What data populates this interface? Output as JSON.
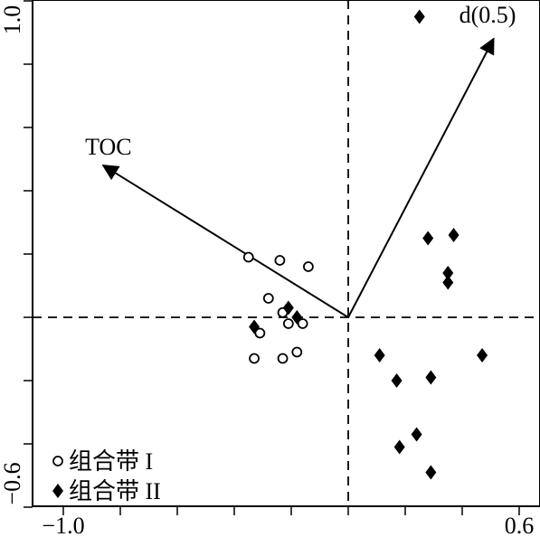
{
  "chart_data": {
    "type": "scatter",
    "title": "",
    "xlabel": "",
    "ylabel": "",
    "xlim": [
      -1.0,
      0.6
    ],
    "ylim": [
      -0.6,
      1.0
    ],
    "x_tick_labels": [
      "−1.0",
      "0.6"
    ],
    "y_tick_labels": [
      "1.0",
      "−0.6"
    ],
    "reference_lines": {
      "x": 0,
      "y": 0,
      "style": "dashed"
    },
    "grid": false,
    "legend_placement": "bottom-left",
    "series": [
      {
        "name": "组合带 I",
        "marker": "open-circle",
        "color": "#000000",
        "points": [
          {
            "x": -0.35,
            "y": 0.19
          },
          {
            "x": -0.24,
            "y": 0.18
          },
          {
            "x": -0.14,
            "y": 0.16
          },
          {
            "x": -0.28,
            "y": 0.06
          },
          {
            "x": -0.23,
            "y": 0.015
          },
          {
            "x": -0.21,
            "y": -0.02
          },
          {
            "x": -0.16,
            "y": -0.02
          },
          {
            "x": -0.31,
            "y": -0.05
          },
          {
            "x": -0.33,
            "y": -0.13
          },
          {
            "x": -0.23,
            "y": -0.13
          },
          {
            "x": -0.18,
            "y": -0.11
          }
        ]
      },
      {
        "name": "组合带 II",
        "marker": "filled-diamond",
        "color": "#000000",
        "points": [
          {
            "x": 0.25,
            "y": 0.95
          },
          {
            "x": 0.28,
            "y": 0.25
          },
          {
            "x": 0.37,
            "y": 0.26
          },
          {
            "x": 0.35,
            "y": 0.14
          },
          {
            "x": 0.35,
            "y": 0.11
          },
          {
            "x": 0.47,
            "y": -0.12
          },
          {
            "x": 0.11,
            "y": -0.12
          },
          {
            "x": 0.17,
            "y": -0.2
          },
          {
            "x": 0.29,
            "y": -0.19
          },
          {
            "x": 0.24,
            "y": -0.37
          },
          {
            "x": 0.18,
            "y": -0.41
          },
          {
            "x": 0.29,
            "y": -0.49
          },
          {
            "x": -0.33,
            "y": -0.03
          },
          {
            "x": -0.21,
            "y": 0.03
          },
          {
            "x": -0.18,
            "y": 0.0
          }
        ]
      }
    ],
    "vectors": [
      {
        "name": "TOC",
        "x": -0.86,
        "y": 0.48
      },
      {
        "name": "d(0.5)",
        "x": 0.51,
        "y": 0.88
      }
    ]
  }
}
